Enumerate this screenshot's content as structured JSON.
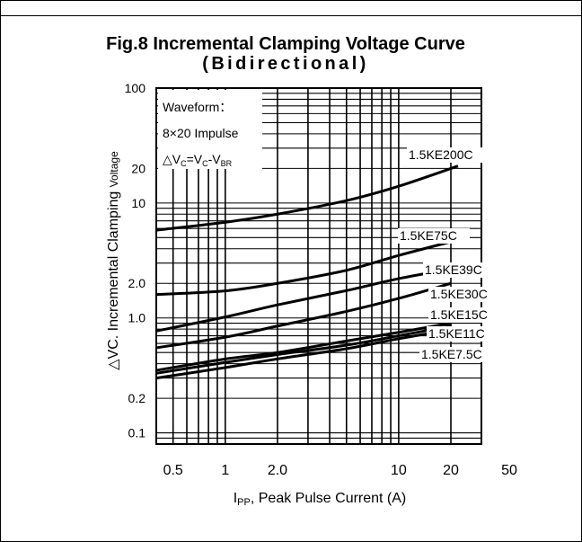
{
  "chart_data": {
    "type": "line",
    "title": "Fig.8 Incremental Clamping Voltage Curve",
    "subtitle": "(Bidirectional)",
    "xlabel_main": "I",
    "xlabel_sub": "PP",
    "xlabel_rest": ", Peak Pulse Current (A)",
    "ylabel_main": "△VC. Incremental Clamping ",
    "ylabel_small": "Voltage",
    "x_scale": "log",
    "y_scale": "log",
    "xlim": [
      0.4,
      30
    ],
    "ylim": [
      0.08,
      100
    ],
    "grid": true,
    "x_ticks": [
      {
        "v": 0.5,
        "label": "0.5"
      },
      {
        "v": 1,
        "label": "1"
      },
      {
        "v": 2,
        "label": "2.0"
      },
      {
        "v": 10,
        "label": "10"
      },
      {
        "v": 20,
        "label": "20"
      },
      {
        "v": 50,
        "label": "50"
      }
    ],
    "y_ticks": [
      {
        "v": 100,
        "label": "100"
      },
      {
        "v": 20,
        "label": "20"
      },
      {
        "v": 10,
        "label": "10"
      },
      {
        "v": 2,
        "label": "2.0"
      },
      {
        "v": 1,
        "label": "1.0"
      },
      {
        "v": 0.2,
        "label": "0.2"
      },
      {
        "v": 0.1,
        "label": "0.1"
      }
    ],
    "annotation": {
      "line1": "Waveform：",
      "line2": "8×20 Impulse",
      "line3_a": "△V",
      "line3_b": "C",
      "line3_c": "=V",
      "line3_d": "C",
      "line3_e": "-V",
      "line3_f": "BR"
    },
    "series": [
      {
        "name": "1.5KE200C",
        "x": [
          0.4,
          1,
          2,
          5,
          10,
          22
        ],
        "y": [
          5.8,
          6.8,
          8.0,
          10.5,
          14.0,
          21.0
        ]
      },
      {
        "name": "1.5KE75C",
        "x": [
          0.4,
          1,
          2,
          5,
          10,
          20
        ],
        "y": [
          1.6,
          1.72,
          2.0,
          2.6,
          3.5,
          4.6
        ]
      },
      {
        "name": "1.5KE39C",
        "x": [
          0.4,
          1,
          2,
          5,
          10,
          20
        ],
        "y": [
          0.77,
          1.02,
          1.3,
          1.73,
          2.2,
          2.66
        ]
      },
      {
        "name": "1.5KE30C",
        "x": [
          0.4,
          1,
          2,
          5,
          10,
          20
        ],
        "y": [
          0.55,
          0.68,
          0.85,
          1.14,
          1.48,
          2.0
        ]
      },
      {
        "name": "1.5KE15C",
        "x": [
          0.4,
          1,
          2,
          5,
          10,
          20
        ],
        "y": [
          0.35,
          0.44,
          0.5,
          0.63,
          0.75,
          0.9
        ]
      },
      {
        "name": "1.5KE11C",
        "x": [
          0.4,
          1,
          2,
          5,
          10,
          20
        ],
        "y": [
          0.33,
          0.41,
          0.48,
          0.58,
          0.7,
          0.85
        ]
      },
      {
        "name": "1.5KE7.5C",
        "x": [
          0.4,
          1,
          2,
          5,
          10,
          20
        ],
        "y": [
          0.3,
          0.37,
          0.44,
          0.54,
          0.66,
          0.79
        ]
      }
    ]
  }
}
